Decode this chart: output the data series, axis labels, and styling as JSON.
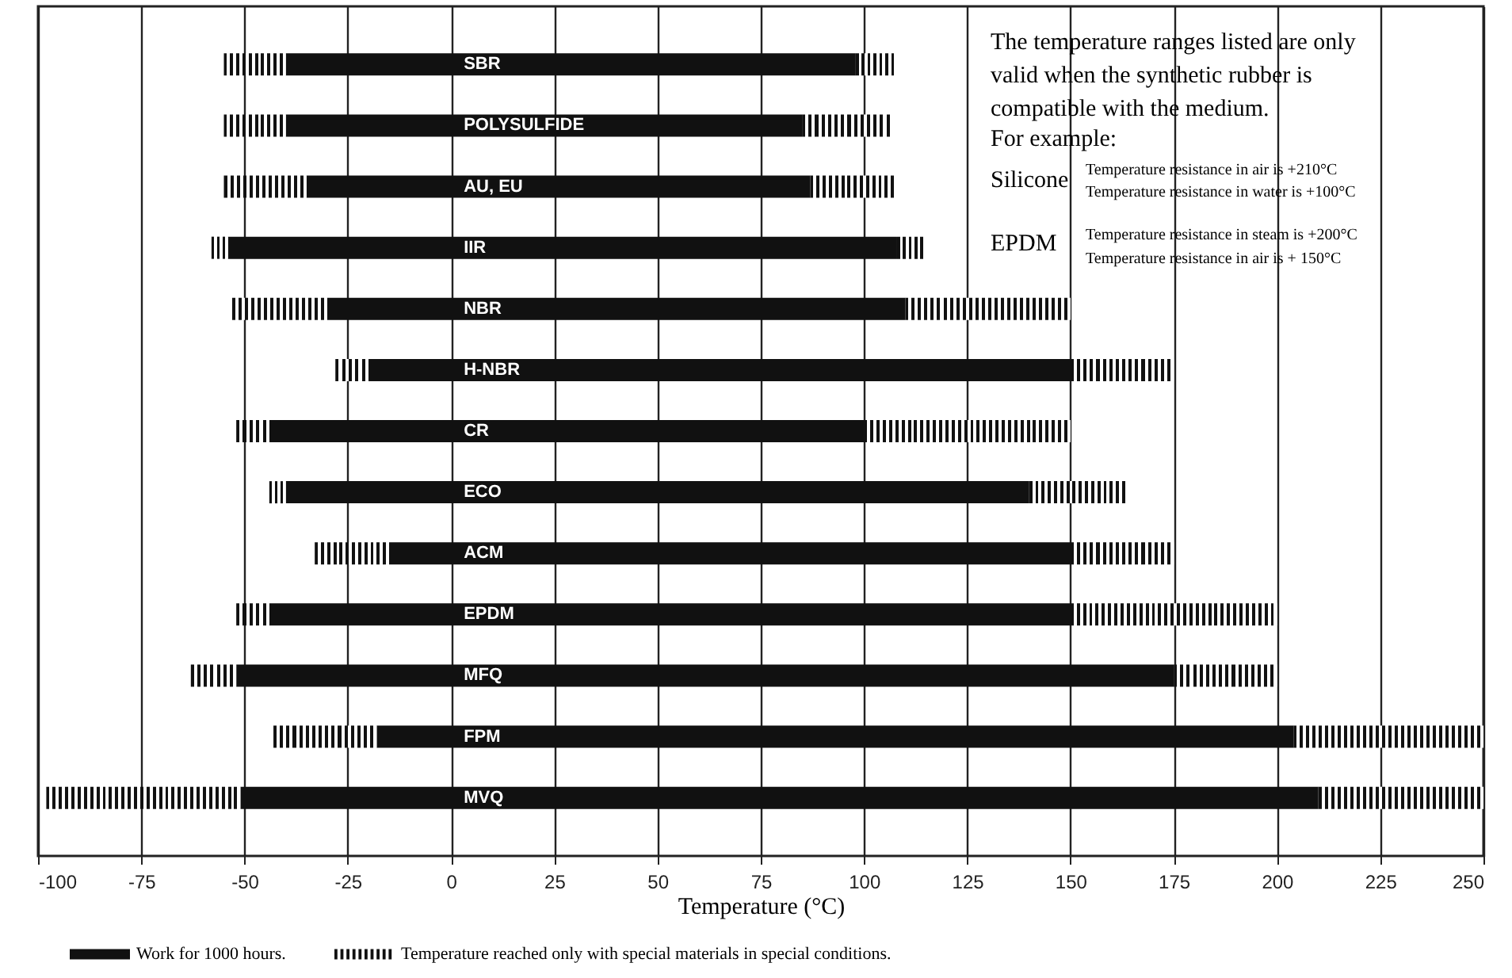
{
  "chart_data": {
    "type": "bar",
    "orientation": "horizontal",
    "xlabel": "Temperature (°C)",
    "categories": [
      "SBR",
      "POLYSULFIDE",
      "AU, EU",
      "IIR",
      "NBR",
      "H-NBR",
      "CR",
      "ECO",
      "ACM",
      "EPDM",
      "MFQ",
      "FPM",
      "MVQ"
    ],
    "series": [
      {
        "name": "Work for 1000 hours.",
        "color": "#111111",
        "line_style": "solid",
        "base": [
          -40,
          -40,
          -35,
          -54,
          -30,
          -20,
          -44,
          -40,
          -15,
          -44,
          -52,
          -18,
          -51
        ],
        "values": [
          138,
          125,
          122,
          162,
          140,
          170,
          144,
          180,
          165,
          194,
          227,
          222,
          261
        ]
      },
      {
        "name": "Temperature reached only with special materials in special conditions.",
        "color": "#111111",
        "line_style": "dashed",
        "base": [
          -55,
          -55,
          -55,
          -58,
          -53,
          -28,
          -52,
          -44,
          -33,
          -52,
          -63,
          -43,
          -98
        ],
        "values": [
          15,
          15,
          20,
          4,
          23,
          8,
          8,
          4,
          18,
          8,
          11,
          25,
          47
        ]
      },
      {
        "color": "#111111",
        "line_style": "dashed",
        "base": [
          98,
          85,
          87,
          108,
          110,
          150,
          100,
          140,
          150,
          150,
          175,
          204,
          210
        ],
        "values": [
          10,
          22,
          21,
          7,
          40,
          25,
          50,
          24,
          25,
          50,
          25,
          46,
          40
        ]
      }
    ],
    "xlim": [
      -100,
      250
    ],
    "xticks": [
      -100,
      -75,
      -50,
      -25,
      0,
      25,
      50,
      75,
      100,
      125,
      150,
      175,
      200,
      225,
      250
    ],
    "grid": "x",
    "legend": "bottom left",
    "annotations": [
      "The temperature ranges listed are only",
      "valid when the synthetic rubber is",
      "compatible with the medium.",
      "For example:",
      "Silicone",
      "Temperature resistance in air is +210°C",
      "Temperature resistance in water is +100°C",
      "EPDM",
      "Temperature resistance in steam is +200°C",
      "Temperature resistance in air is + 150°C"
    ]
  }
}
